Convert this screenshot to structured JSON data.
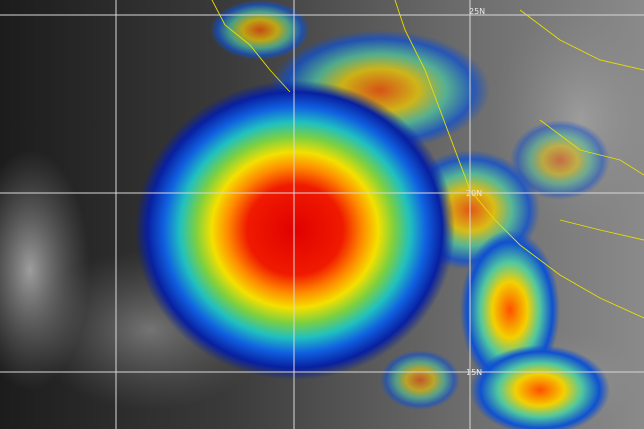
{
  "grid_labels": [
    "25N",
    "20N",
    "15N"
  ]
}
